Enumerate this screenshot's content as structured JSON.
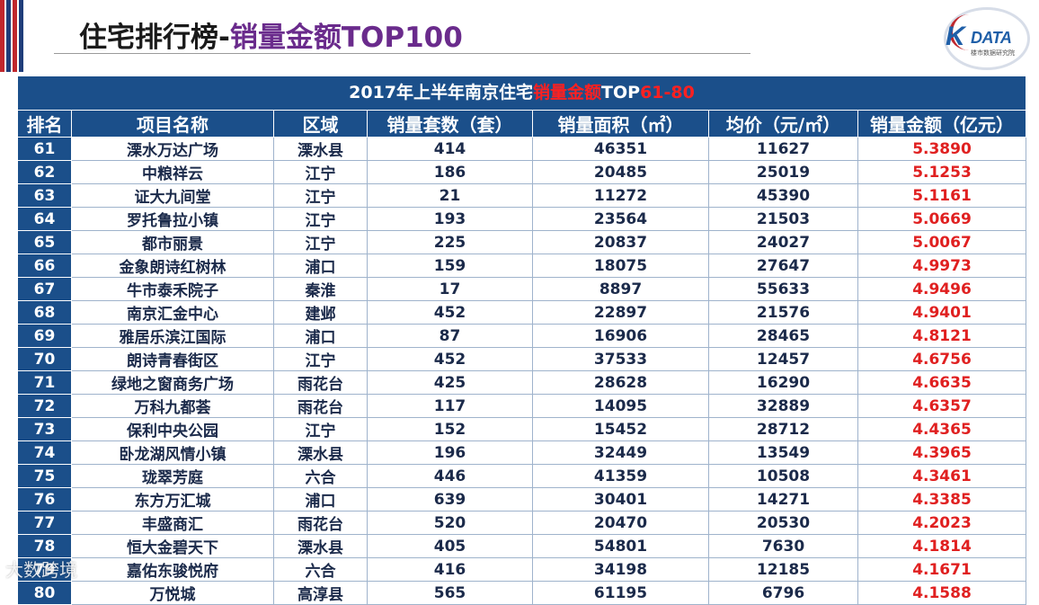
{
  "page": {
    "title_part1": "住宅排行榜-",
    "title_part2": "销量金额TOP100",
    "logo_letter": "K",
    "logo_text": "DATA",
    "logo_sub": "楼市数据研究院",
    "watermark": "大数跨境"
  },
  "colors": {
    "header_bg": "#1b4f8a",
    "highlight": "#e02020",
    "title_accent": "#6a2b8c"
  },
  "table": {
    "caption_pre": "2017年上半年南京住宅",
    "caption_hl1": "销量金额",
    "caption_mid": "TOP",
    "caption_hl2": "61-80",
    "headers": [
      "排名",
      "项目名称",
      "区域",
      "销量套数（套）",
      "销量面积（㎡）",
      "均价（元/㎡）",
      "销量金额（亿元）"
    ],
    "rows": [
      [
        "61",
        "溧水万达广场",
        "溧水县",
        "414",
        "46351",
        "11627",
        "5.3890"
      ],
      [
        "62",
        "中粮祥云",
        "江宁",
        "186",
        "20485",
        "25019",
        "5.1253"
      ],
      [
        "63",
        "证大九间堂",
        "江宁",
        "21",
        "11272",
        "45390",
        "5.1161"
      ],
      [
        "64",
        "罗托鲁拉小镇",
        "江宁",
        "193",
        "23564",
        "21503",
        "5.0669"
      ],
      [
        "65",
        "都市丽景",
        "江宁",
        "225",
        "20837",
        "24027",
        "5.0067"
      ],
      [
        "66",
        "金象朗诗红树林",
        "浦口",
        "159",
        "18075",
        "27647",
        "4.9973"
      ],
      [
        "67",
        "牛市泰禾院子",
        "秦淮",
        "17",
        "8897",
        "55633",
        "4.9496"
      ],
      [
        "68",
        "南京汇金中心",
        "建邺",
        "452",
        "22897",
        "21576",
        "4.9401"
      ],
      [
        "69",
        "雅居乐滨江国际",
        "浦口",
        "87",
        "16906",
        "28465",
        "4.8121"
      ],
      [
        "70",
        "朗诗青春街区",
        "江宁",
        "452",
        "37533",
        "12457",
        "4.6756"
      ],
      [
        "71",
        "绿地之窗商务广场",
        "雨花台",
        "425",
        "28628",
        "16290",
        "4.6635"
      ],
      [
        "72",
        "万科九都荟",
        "雨花台",
        "117",
        "14095",
        "32889",
        "4.6357"
      ],
      [
        "73",
        "保利中央公园",
        "江宁",
        "152",
        "15452",
        "28712",
        "4.4365"
      ],
      [
        "74",
        "卧龙湖风情小镇",
        "溧水县",
        "196",
        "32449",
        "13549",
        "4.3965"
      ],
      [
        "75",
        "珑翠芳庭",
        "六合",
        "446",
        "41359",
        "10508",
        "4.3461"
      ],
      [
        "76",
        "东方万汇城",
        "浦口",
        "639",
        "30401",
        "14271",
        "4.3385"
      ],
      [
        "77",
        "丰盛商汇",
        "雨花台",
        "520",
        "20470",
        "20530",
        "4.2023"
      ],
      [
        "78",
        "恒大金碧天下",
        "溧水县",
        "405",
        "54801",
        "7630",
        "4.1814"
      ],
      [
        "79",
        "嘉佑东骏悦府",
        "六合",
        "416",
        "34198",
        "12185",
        "4.1671"
      ],
      [
        "80",
        "万悦城",
        "高淳县",
        "565",
        "61195",
        "6796",
        "4.1588"
      ]
    ]
  }
}
